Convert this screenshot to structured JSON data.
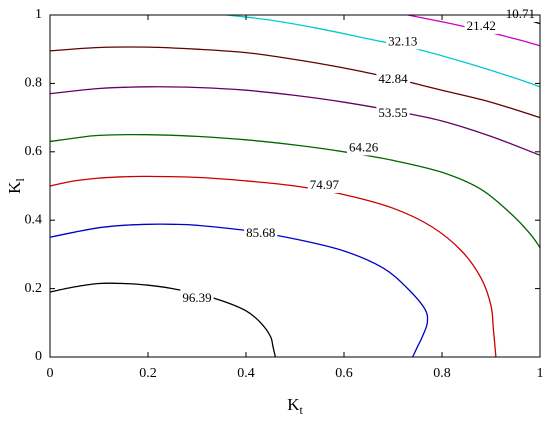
{
  "chart_data": {
    "type": "contour",
    "xlabel": {
      "main": "K",
      "sub": "t"
    },
    "ylabel": {
      "main": "K",
      "sub": "l"
    },
    "xlim": [
      0,
      1
    ],
    "ylim": [
      0,
      1
    ],
    "x_ticks": [
      "0",
      "0.2",
      "0.4",
      "0.6",
      "0.8",
      "1"
    ],
    "y_ticks": [
      "0",
      "0.2",
      "0.4",
      "0.6",
      "0.8",
      "1"
    ],
    "grid": false,
    "contours": [
      {
        "level": "96.39",
        "color": "#000000",
        "label_at": [
          0.3,
          0.17
        ],
        "points": [
          [
            0,
            0.19
          ],
          [
            0.05,
            0.205
          ],
          [
            0.1,
            0.215
          ],
          [
            0.15,
            0.215
          ],
          [
            0.2,
            0.21
          ],
          [
            0.25,
            0.2
          ],
          [
            0.3,
            0.185
          ],
          [
            0.35,
            0.165
          ],
          [
            0.4,
            0.135
          ],
          [
            0.43,
            0.1
          ],
          [
            0.45,
            0.06
          ],
          [
            0.455,
            0.03
          ],
          [
            0.46,
            0
          ]
        ]
      },
      {
        "level": "85.68",
        "color": "#0000cc",
        "label_at": [
          0.43,
          0.36
        ],
        "points": [
          [
            0,
            0.35
          ],
          [
            0.05,
            0.365
          ],
          [
            0.1,
            0.378
          ],
          [
            0.15,
            0.385
          ],
          [
            0.2,
            0.388
          ],
          [
            0.25,
            0.388
          ],
          [
            0.3,
            0.385
          ],
          [
            0.4,
            0.37
          ],
          [
            0.5,
            0.345
          ],
          [
            0.6,
            0.31
          ],
          [
            0.68,
            0.26
          ],
          [
            0.73,
            0.2
          ],
          [
            0.765,
            0.14
          ],
          [
            0.77,
            0.1
          ],
          [
            0.76,
            0.06
          ],
          [
            0.75,
            0.03
          ],
          [
            0.74,
            0
          ]
        ]
      },
      {
        "level": "74.97",
        "color": "#cc0000",
        "label_at": [
          0.56,
          0.5
        ],
        "points": [
          [
            0,
            0.5
          ],
          [
            0.05,
            0.515
          ],
          [
            0.1,
            0.523
          ],
          [
            0.15,
            0.527
          ],
          [
            0.2,
            0.528
          ],
          [
            0.3,
            0.525
          ],
          [
            0.4,
            0.515
          ],
          [
            0.5,
            0.5
          ],
          [
            0.6,
            0.475
          ],
          [
            0.7,
            0.435
          ],
          [
            0.78,
            0.38
          ],
          [
            0.84,
            0.31
          ],
          [
            0.88,
            0.23
          ],
          [
            0.9,
            0.15
          ],
          [
            0.905,
            0.08
          ],
          [
            0.91,
            0
          ]
        ]
      },
      {
        "level": "64.26",
        "color": "#006600",
        "label_at": [
          0.64,
          0.61
        ],
        "points": [
          [
            0,
            0.63
          ],
          [
            0.05,
            0.64
          ],
          [
            0.1,
            0.648
          ],
          [
            0.2,
            0.65
          ],
          [
            0.3,
            0.645
          ],
          [
            0.4,
            0.635
          ],
          [
            0.5,
            0.62
          ],
          [
            0.6,
            0.6
          ],
          [
            0.7,
            0.575
          ],
          [
            0.8,
            0.54
          ],
          [
            0.88,
            0.49
          ],
          [
            0.94,
            0.42
          ],
          [
            0.98,
            0.36
          ],
          [
            1.0,
            0.32
          ]
        ]
      },
      {
        "level": "53.55",
        "color": "#660066",
        "label_at": [
          0.7,
          0.71
        ],
        "points": [
          [
            0,
            0.77
          ],
          [
            0.1,
            0.785
          ],
          [
            0.2,
            0.79
          ],
          [
            0.3,
            0.788
          ],
          [
            0.4,
            0.78
          ],
          [
            0.5,
            0.765
          ],
          [
            0.6,
            0.745
          ],
          [
            0.7,
            0.72
          ],
          [
            0.8,
            0.69
          ],
          [
            0.9,
            0.645
          ],
          [
            1.0,
            0.59
          ]
        ]
      },
      {
        "level": "42.84",
        "color": "#660000",
        "label_at": [
          0.7,
          0.81
        ],
        "points": [
          [
            0,
            0.895
          ],
          [
            0.1,
            0.905
          ],
          [
            0.2,
            0.906
          ],
          [
            0.3,
            0.9
          ],
          [
            0.4,
            0.89
          ],
          [
            0.5,
            0.87
          ],
          [
            0.6,
            0.845
          ],
          [
            0.7,
            0.815
          ],
          [
            0.8,
            0.78
          ],
          [
            0.9,
            0.745
          ],
          [
            1.0,
            0.7
          ]
        ]
      },
      {
        "level": "32.13",
        "color": "#00cccc",
        "label_at": [
          0.72,
          0.92
        ],
        "points": [
          [
            0.36,
            1.0
          ],
          [
            0.45,
            0.985
          ],
          [
            0.55,
            0.96
          ],
          [
            0.65,
            0.93
          ],
          [
            0.75,
            0.9
          ],
          [
            0.85,
            0.86
          ],
          [
            0.95,
            0.815
          ],
          [
            1.0,
            0.79
          ]
        ]
      },
      {
        "level": "21.42",
        "color": "#cc00cc",
        "label_at": [
          0.88,
          0.965
        ],
        "points": [
          [
            0.73,
            1.0
          ],
          [
            0.8,
            0.98
          ],
          [
            0.88,
            0.955
          ],
          [
            0.95,
            0.93
          ],
          [
            1.0,
            0.91
          ]
        ]
      },
      {
        "level": "10.71",
        "color": "#000000",
        "label_at": [
          0.96,
          1.0
        ],
        "points": [
          [
            0.935,
            1.0
          ],
          [
            0.965,
            0.99
          ],
          [
            1.0,
            0.975
          ]
        ]
      }
    ]
  }
}
